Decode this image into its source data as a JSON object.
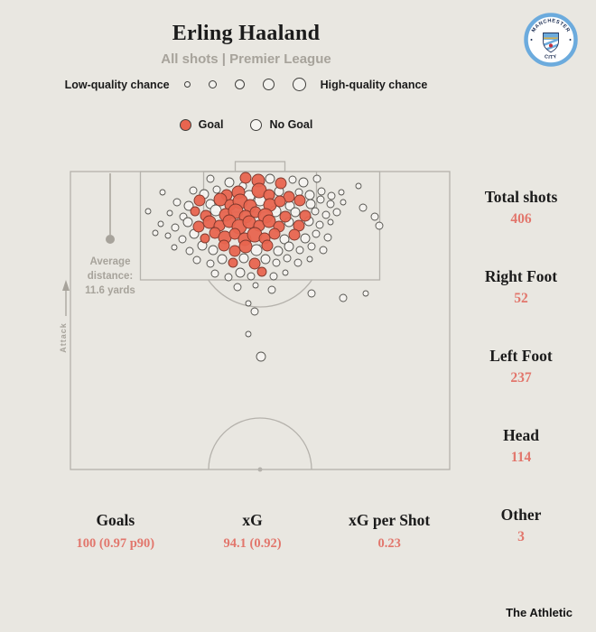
{
  "colors": {
    "bg": "#e9e7e1",
    "text": "#1b1b1b",
    "muted": "#a7a39b",
    "line": "#b5b2ac",
    "value": "#e2766c",
    "goal": "#e8654f",
    "nogoal": "#f6f5f1"
  },
  "header": {
    "title": "Erling Haaland",
    "subtitle": "All shots | Premier League",
    "badge": {
      "top_text": "MANCHESTER",
      "bottom_text": "CITY"
    }
  },
  "legend": {
    "quality": {
      "low_label": "Low-quality chance",
      "high_label": "High-quality chance",
      "dot_diameters": [
        7,
        9,
        11,
        13,
        15
      ]
    },
    "outcome": {
      "goal_label": "Goal",
      "no_goal_label": "No Goal"
    }
  },
  "pitch": {
    "avg_distance": {
      "line1": "Average",
      "line2": "distance:",
      "line3": "11.6 yards"
    },
    "attack_label": "Attack"
  },
  "stats_right": [
    {
      "label": "Total shots",
      "value": "406"
    },
    {
      "label": "Right Foot",
      "value": "52"
    },
    {
      "label": "Left Foot",
      "value": "237"
    },
    {
      "label": "Head",
      "value": "114"
    },
    {
      "label": "Other",
      "value": "3"
    }
  ],
  "stats_bottom": [
    {
      "label": "Goals",
      "value": "100 (0.97 p90)"
    },
    {
      "label": "xG",
      "value": "94.1 (0.92)"
    },
    {
      "label": "xG per Shot",
      "value": "0.23"
    }
  ],
  "footer": {
    "brand": "The Athletic"
  },
  "chart_data": {
    "type": "scatter",
    "title": "Erling Haaland — All shots | Premier League",
    "note": "Half-pitch shot map, attacking upward toward the goal at top. Coordinates are SVG px in a 440x356 viewBox (goal line y=14, pitch x 10-430). Marker radius encodes chance quality (xG); red = goal, white = no goal. Positions estimated from the image.",
    "legend": [
      "Goal",
      "No Goal"
    ],
    "average_distance_yards": 11.6,
    "summary": {
      "total_shots": 406,
      "goals": 100,
      "xg": 94.1,
      "xg_per_shot": 0.23,
      "right_foot": 52,
      "left_foot": 237,
      "head": 114,
      "other": 3
    },
    "shot_format": [
      "x",
      "y",
      "radius",
      "is_goal"
    ],
    "shots": [
      [
        165,
        22,
        4,
        0
      ],
      [
        186,
        26,
        5,
        0
      ],
      [
        204,
        21,
        6,
        1
      ],
      [
        218,
        24,
        7,
        1
      ],
      [
        231,
        22,
        5,
        0
      ],
      [
        243,
        27,
        6,
        1
      ],
      [
        256,
        23,
        4,
        0
      ],
      [
        268,
        26,
        5,
        0
      ],
      [
        283,
        22,
        4,
        0
      ],
      [
        201,
        30,
        4,
        0
      ],
      [
        112,
        37,
        3,
        0
      ],
      [
        329,
        30,
        3,
        0
      ],
      [
        146,
        35,
        4,
        0
      ],
      [
        158,
        39,
        5,
        0
      ],
      [
        172,
        34,
        4,
        0
      ],
      [
        183,
        40,
        6,
        1
      ],
      [
        196,
        37,
        7,
        1
      ],
      [
        208,
        41,
        6,
        0
      ],
      [
        219,
        35,
        8,
        1
      ],
      [
        230,
        40,
        6,
        1
      ],
      [
        241,
        36,
        5,
        0
      ],
      [
        252,
        42,
        6,
        1
      ],
      [
        263,
        37,
        4,
        0
      ],
      [
        275,
        40,
        5,
        0
      ],
      [
        288,
        36,
        4,
        0
      ],
      [
        299,
        41,
        4,
        0
      ],
      [
        310,
        37,
        3,
        0
      ],
      [
        128,
        48,
        4,
        0
      ],
      [
        141,
        52,
        5,
        0
      ],
      [
        153,
        46,
        6,
        1
      ],
      [
        165,
        50,
        5,
        0
      ],
      [
        176,
        45,
        7,
        1
      ],
      [
        187,
        51,
        6,
        1
      ],
      [
        198,
        47,
        8,
        1
      ],
      [
        209,
        52,
        7,
        1
      ],
      [
        220,
        46,
        6,
        0
      ],
      [
        231,
        51,
        7,
        1
      ],
      [
        242,
        47,
        6,
        1
      ],
      [
        253,
        52,
        5,
        0
      ],
      [
        264,
        46,
        6,
        1
      ],
      [
        276,
        50,
        5,
        0
      ],
      [
        287,
        45,
        4,
        0
      ],
      [
        298,
        50,
        4,
        0
      ],
      [
        312,
        48,
        3,
        0
      ],
      [
        334,
        54,
        4,
        0
      ],
      [
        96,
        58,
        3,
        0
      ],
      [
        120,
        60,
        3,
        0
      ],
      [
        135,
        64,
        4,
        0
      ],
      [
        148,
        58,
        5,
        1
      ],
      [
        160,
        63,
        6,
        1
      ],
      [
        171,
        57,
        6,
        0
      ],
      [
        182,
        62,
        7,
        1
      ],
      [
        193,
        58,
        8,
        1
      ],
      [
        204,
        64,
        7,
        1
      ],
      [
        215,
        59,
        6,
        1
      ],
      [
        226,
        63,
        8,
        1
      ],
      [
        237,
        58,
        6,
        0
      ],
      [
        248,
        64,
        6,
        1
      ],
      [
        259,
        59,
        5,
        0
      ],
      [
        270,
        63,
        6,
        1
      ],
      [
        281,
        58,
        4,
        0
      ],
      [
        293,
        62,
        4,
        0
      ],
      [
        305,
        59,
        4,
        0
      ],
      [
        347,
        64,
        4,
        0
      ],
      [
        110,
        72,
        3,
        0
      ],
      [
        126,
        76,
        4,
        0
      ],
      [
        140,
        70,
        5,
        0
      ],
      [
        152,
        75,
        6,
        1
      ],
      [
        164,
        70,
        7,
        1
      ],
      [
        175,
        74,
        6,
        1
      ],
      [
        186,
        69,
        7,
        1
      ],
      [
        197,
        75,
        8,
        1
      ],
      [
        208,
        70,
        7,
        1
      ],
      [
        219,
        74,
        6,
        1
      ],
      [
        230,
        69,
        7,
        1
      ],
      [
        241,
        75,
        6,
        1
      ],
      [
        252,
        70,
        5,
        0
      ],
      [
        263,
        74,
        6,
        1
      ],
      [
        274,
        69,
        5,
        0
      ],
      [
        286,
        73,
        4,
        0
      ],
      [
        298,
        70,
        3,
        0
      ],
      [
        352,
        74,
        4,
        0
      ],
      [
        104,
        82,
        3,
        0
      ],
      [
        118,
        85,
        3,
        0
      ],
      [
        134,
        89,
        4,
        0
      ],
      [
        147,
        83,
        5,
        0
      ],
      [
        159,
        88,
        5,
        1
      ],
      [
        170,
        82,
        6,
        1
      ],
      [
        181,
        87,
        7,
        1
      ],
      [
        192,
        83,
        6,
        1
      ],
      [
        203,
        89,
        7,
        1
      ],
      [
        214,
        84,
        8,
        1
      ],
      [
        225,
        88,
        6,
        1
      ],
      [
        236,
        83,
        6,
        1
      ],
      [
        247,
        89,
        5,
        0
      ],
      [
        258,
        84,
        6,
        1
      ],
      [
        270,
        88,
        5,
        0
      ],
      [
        282,
        83,
        4,
        0
      ],
      [
        295,
        87,
        4,
        0
      ],
      [
        125,
        98,
        3,
        0
      ],
      [
        142,
        102,
        4,
        0
      ],
      [
        156,
        96,
        5,
        0
      ],
      [
        168,
        101,
        5,
        0
      ],
      [
        180,
        96,
        6,
        1
      ],
      [
        192,
        102,
        6,
        1
      ],
      [
        204,
        97,
        7,
        1
      ],
      [
        216,
        101,
        6,
        0
      ],
      [
        228,
        96,
        6,
        1
      ],
      [
        240,
        102,
        5,
        0
      ],
      [
        252,
        97,
        5,
        0
      ],
      [
        264,
        101,
        4,
        0
      ],
      [
        277,
        97,
        4,
        0
      ],
      [
        290,
        101,
        4,
        0
      ],
      [
        150,
        112,
        4,
        0
      ],
      [
        165,
        116,
        4,
        0
      ],
      [
        178,
        111,
        5,
        0
      ],
      [
        190,
        115,
        5,
        1
      ],
      [
        202,
        110,
        5,
        0
      ],
      [
        214,
        116,
        6,
        1
      ],
      [
        226,
        111,
        5,
        0
      ],
      [
        238,
        115,
        4,
        0
      ],
      [
        250,
        110,
        4,
        0
      ],
      [
        262,
        115,
        4,
        0
      ],
      [
        275,
        111,
        3,
        0
      ],
      [
        170,
        127,
        4,
        0
      ],
      [
        185,
        131,
        4,
        0
      ],
      [
        198,
        126,
        5,
        0
      ],
      [
        210,
        130,
        4,
        0
      ],
      [
        222,
        125,
        5,
        1
      ],
      [
        235,
        130,
        4,
        0
      ],
      [
        248,
        126,
        3,
        0
      ],
      [
        195,
        142,
        4,
        0
      ],
      [
        215,
        140,
        3,
        0
      ],
      [
        233,
        145,
        4,
        0
      ],
      [
        277,
        149,
        4,
        0
      ],
      [
        312,
        154,
        4,
        0
      ],
      [
        337,
        149,
        3,
        0
      ],
      [
        207,
        160,
        3,
        0
      ],
      [
        214,
        169,
        4,
        0
      ],
      [
        207,
        194,
        3,
        0
      ],
      [
        221,
        219,
        5,
        0
      ]
    ]
  }
}
